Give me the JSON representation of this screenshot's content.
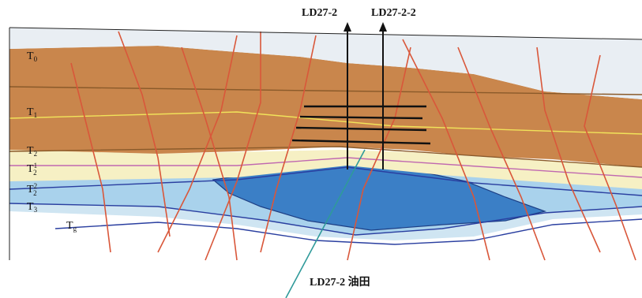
{
  "wells": [
    {
      "label": "LD27-2"
    },
    {
      "label": "LD27-2-2"
    }
  ],
  "horizons": [
    {
      "base": "T",
      "sub": "0"
    },
    {
      "base": "T",
      "sub": "1"
    },
    {
      "base": "T",
      "sub": "2"
    },
    {
      "base": "T",
      "sub": "2",
      "sup": "1"
    },
    {
      "base": "T",
      "sub": "2",
      "sup": "2"
    },
    {
      "base": "T",
      "sub": "3"
    },
    {
      "base": "T",
      "sub": "g"
    }
  ],
  "caption": "LD27-2 油田"
}
